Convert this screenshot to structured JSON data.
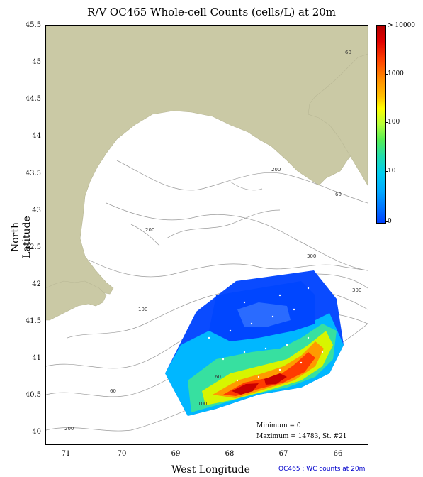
{
  "title": "R/V OC465 Whole-cell Counts (cells/L) at 20m",
  "x_axis": {
    "label": "West Longitude",
    "ticks": [
      "71",
      "70",
      "69",
      "68",
      "67",
      "66"
    ]
  },
  "y_axis": {
    "label": "North Latitude",
    "ticks": [
      "45.5",
      "45",
      "44.5",
      "44",
      "43.5",
      "43",
      "42.5",
      "42",
      "41.5",
      "41",
      "40.5",
      "40"
    ]
  },
  "colorbar": {
    "labels": [
      "> 10000",
      "1000",
      "100",
      "10",
      "0"
    ],
    "colors": [
      "#b30000",
      "#ff8c00",
      "#ffff00",
      "#22ddaa",
      "#00a8ff",
      "#0040ff"
    ]
  },
  "contour_labels": [
    "60",
    "200",
    "100",
    "60",
    "300",
    "200",
    "60",
    "300",
    "100",
    "60",
    "200"
  ],
  "stats": {
    "minimum": "Minimum = 0",
    "maximum": "Maximum = 14783, St. #21"
  },
  "footer": "OC465 : WC counts at 20m",
  "colors": {
    "land": "#cac9a5",
    "water": "#ffffff",
    "contour": "#9a9a9a"
  }
}
